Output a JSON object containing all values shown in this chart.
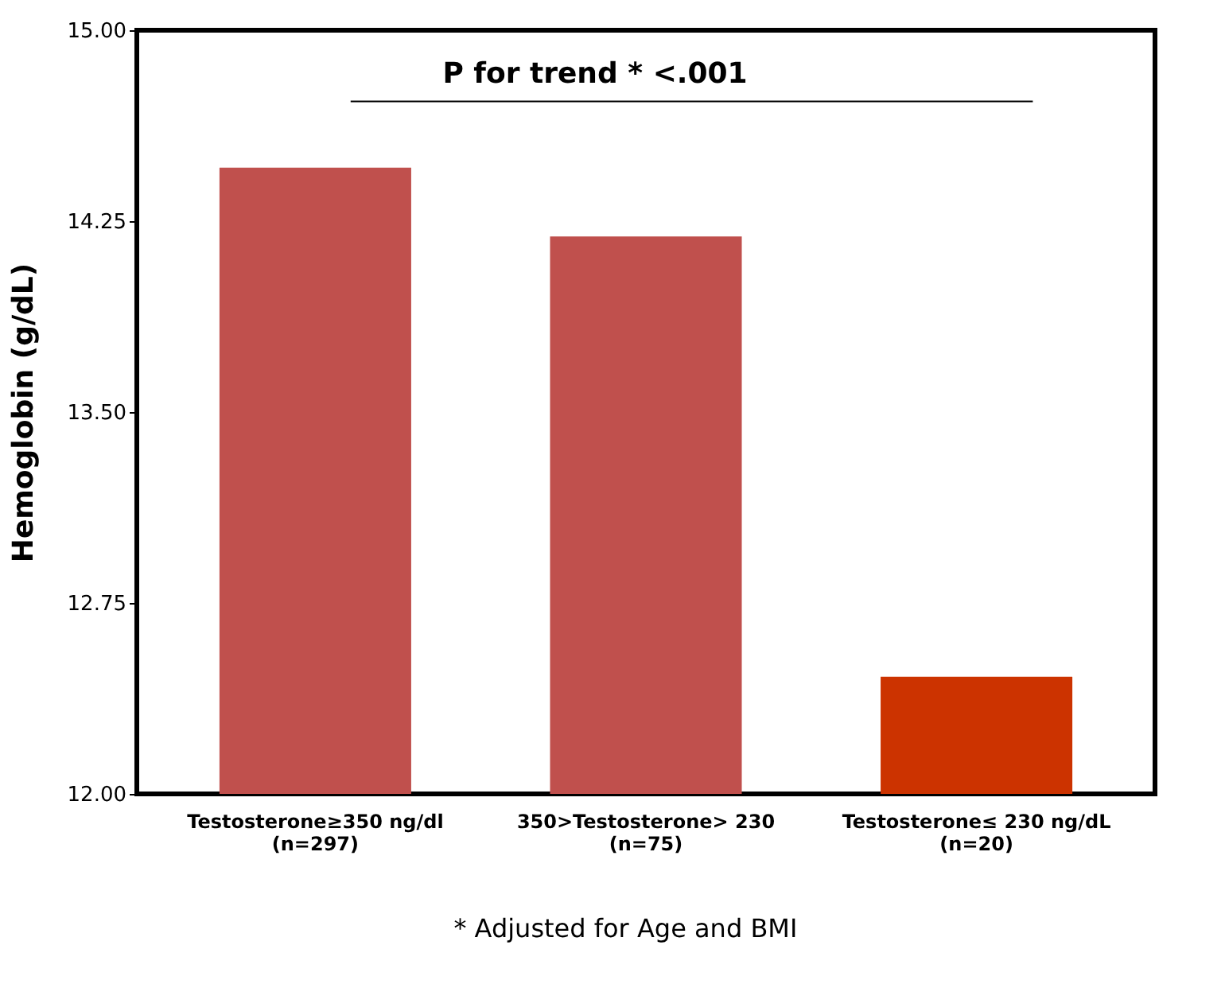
{
  "chart_data": {
    "type": "bar",
    "categories": [
      "Testosterone≥350 ng/dl\n(n=297)",
      "350>Testosterone> 230\n(n=75)",
      "Testosterone≤ 230 ng/dL\n(n=20)"
    ],
    "series": [
      {
        "values": [
          14.46,
          14.19,
          12.46
        ],
        "colors": [
          "#c0504d",
          "#c0504d",
          "#cc3300"
        ]
      }
    ],
    "ylabel": "Hemoglobin (g/dL)",
    "ylim": [
      12,
      15
    ],
    "yticks": [
      {
        "value": 12,
        "label": "12.00"
      },
      {
        "value": 12.75,
        "label": "12.75"
      },
      {
        "value": 13.5,
        "label": "13.50"
      },
      {
        "value": 14.25,
        "label": "14.25"
      },
      {
        "value": 15,
        "label": "15.00"
      }
    ],
    "ref_lines": [
      {
        "axis": "y",
        "value": 14.72,
        "label": "P for trend * <.001",
        "color": "#000000"
      }
    ],
    "annotations": [
      "* Adjusted for Age and BMI"
    ],
    "grid": false
  }
}
